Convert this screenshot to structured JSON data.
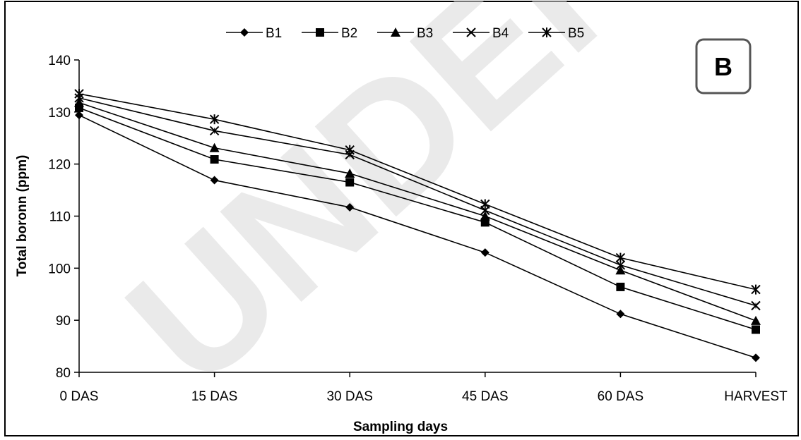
{
  "panel_label": "B",
  "watermark_text": "UNDER PEER REVIEW",
  "chart_data": {
    "type": "line",
    "title": "",
    "xlabel": "Sampling days",
    "ylabel": "Total boronn (ppm)",
    "ylim": [
      80,
      140
    ],
    "yticks": [
      80,
      90,
      100,
      110,
      120,
      130,
      140
    ],
    "categories": [
      "0 DAS",
      "15 DAS",
      "30 DAS",
      "45 DAS",
      "60 DAS",
      "HARVEST"
    ],
    "grid": false,
    "legend_position": "top-center",
    "series": [
      {
        "name": "B1",
        "marker": "diamond",
        "values": [
          129.4,
          116.9,
          111.7,
          103.0,
          91.2,
          82.8
        ]
      },
      {
        "name": "B2",
        "marker": "square",
        "values": [
          130.8,
          120.9,
          116.5,
          108.8,
          96.4,
          88.2
        ]
      },
      {
        "name": "B3",
        "marker": "triangle",
        "values": [
          131.8,
          123.1,
          118.2,
          110.0,
          99.6,
          89.9
        ]
      },
      {
        "name": "B4",
        "marker": "x",
        "values": [
          132.7,
          126.4,
          121.8,
          111.1,
          100.6,
          92.8
        ]
      },
      {
        "name": "B5",
        "marker": "star",
        "values": [
          133.5,
          128.6,
          122.7,
          112.3,
          102.0,
          95.9
        ]
      }
    ]
  }
}
